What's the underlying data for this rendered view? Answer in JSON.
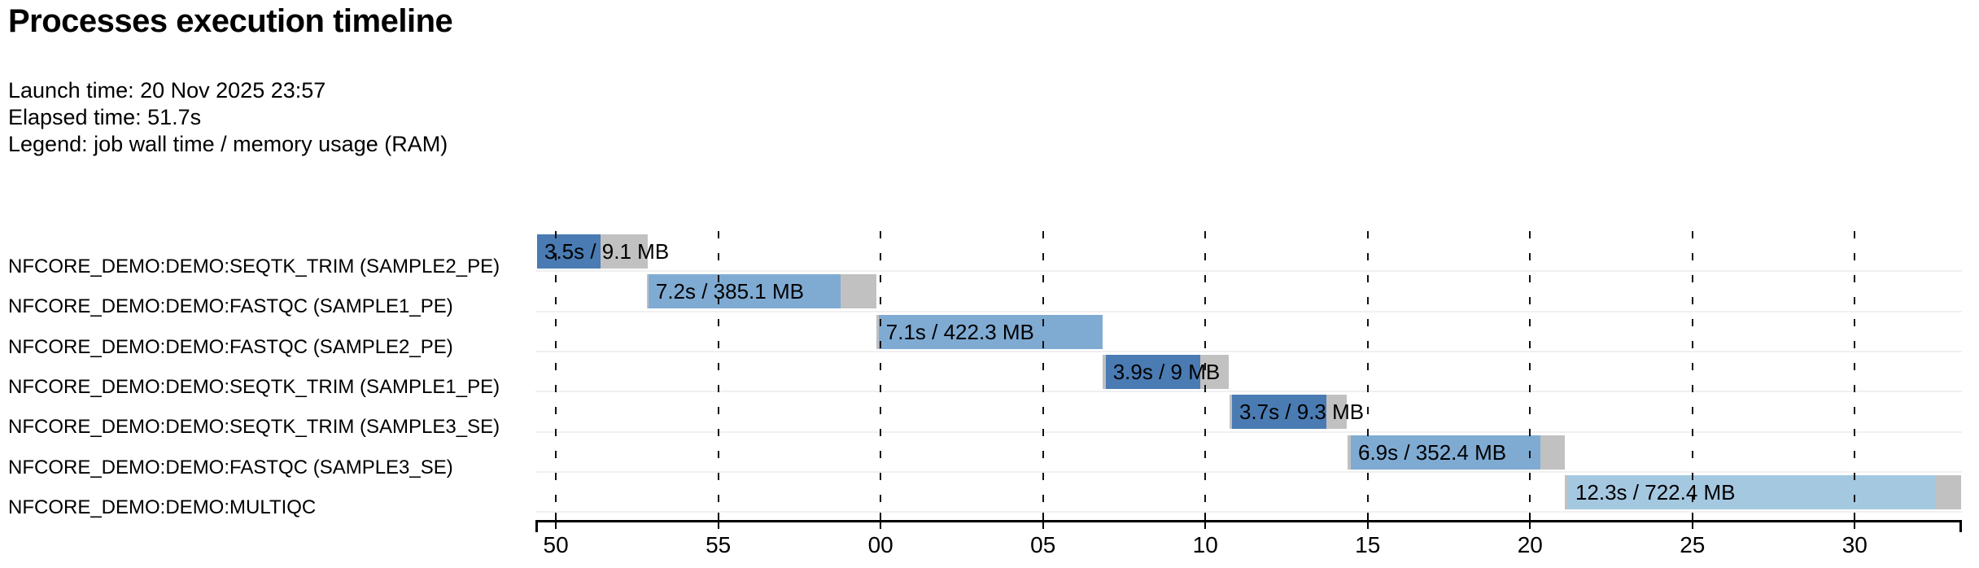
{
  "header": {
    "title": "Processes execution timeline",
    "launch_time": "Launch time: 20 Nov 2025 23:57",
    "elapsed_time": "Elapsed time: 51.7s",
    "legend": "Legend: job wall time / memory usage (RAM)"
  },
  "colors": {
    "seqtk_trim": "#4a7bb3",
    "fastqc": "#7fabd3",
    "multiqc": "#a5c8e1",
    "cap_gray": "#c1c1c1",
    "row_line": "#f0f0f0",
    "axis": "#000000",
    "text": "#000000"
  },
  "chart_data": {
    "type": "timeline",
    "title": "Processes execution timeline",
    "time_unit": "seconds (mm:ss ticks)",
    "time_domain_s": [
      49.37,
      93.3
    ],
    "axis_ticks": [
      {
        "t": 50,
        "label": "50"
      },
      {
        "t": 55,
        "label": "55"
      },
      {
        "t": 60,
        "label": "00"
      },
      {
        "t": 65,
        "label": "05"
      },
      {
        "t": 70,
        "label": "10"
      },
      {
        "t": 75,
        "label": "15"
      },
      {
        "t": 80,
        "label": "20"
      },
      {
        "t": 85,
        "label": "25"
      },
      {
        "t": 90,
        "label": "30"
      }
    ],
    "tasks": [
      {
        "label": "NFCORE_DEMO:DEMO:SEQTK_TRIM (SAMPLE2_PE)",
        "bar_label": "3.5s / 9.1 MB",
        "wall_time": "3.5s",
        "memory": "9.1 MB",
        "color_key": "seqtk_trim",
        "pre": null,
        "main": [
          49.42,
          51.37
        ],
        "post": [
          51.37,
          52.82
        ]
      },
      {
        "label": "NFCORE_DEMO:DEMO:FASTQC (SAMPLE1_PE)",
        "bar_label": "7.2s / 385.1 MB",
        "wall_time": "7.2s",
        "memory": "385.1 MB",
        "color_key": "fastqc",
        "pre": [
          52.8,
          52.85
        ],
        "main": [
          52.85,
          58.77
        ],
        "post": [
          58.77,
          59.87
        ]
      },
      {
        "label": "NFCORE_DEMO:DEMO:FASTQC (SAMPLE2_PE)",
        "bar_label": "7.1s / 422.3 MB",
        "wall_time": "7.1s",
        "memory": "422.3 MB",
        "color_key": "fastqc",
        "pre": [
          59.87,
          59.94
        ],
        "main": [
          59.94,
          66.83
        ],
        "post": null
      },
      {
        "label": "NFCORE_DEMO:DEMO:SEQTK_TRIM (SAMPLE1_PE)",
        "bar_label": "3.9s / 9 MB",
        "wall_time": "3.9s",
        "memory": "9 MB",
        "color_key": "seqtk_trim",
        "pre": [
          66.83,
          66.93
        ],
        "main": [
          66.93,
          69.84
        ],
        "post": [
          69.84,
          70.72
        ]
      },
      {
        "label": "NFCORE_DEMO:DEMO:SEQTK_TRIM (SAMPLE3_SE)",
        "bar_label": "3.7s / 9.3 MB",
        "wall_time": "3.7s",
        "memory": "9.3 MB",
        "color_key": "seqtk_trim",
        "pre": [
          70.74,
          70.82
        ],
        "main": [
          70.82,
          73.73
        ],
        "post": [
          73.73,
          74.35
        ]
      },
      {
        "label": "NFCORE_DEMO:DEMO:FASTQC (SAMPLE3_SE)",
        "bar_label": "6.9s / 352.4 MB",
        "wall_time": "6.9s",
        "memory": "352.4 MB",
        "color_key": "fastqc",
        "pre": [
          74.38,
          74.48
        ],
        "main": [
          74.48,
          80.32
        ],
        "post": [
          80.32,
          81.07
        ]
      },
      {
        "label": "NFCORE_DEMO:DEMO:MULTIQC",
        "bar_label": "12.3s / 722.4 MB",
        "wall_time": "12.3s",
        "memory": "722.4 MB",
        "color_key": "multiqc",
        "pre": [
          81.07,
          81.17
        ],
        "main": [
          81.17,
          92.47
        ],
        "post": [
          92.47,
          93.27
        ]
      }
    ]
  }
}
